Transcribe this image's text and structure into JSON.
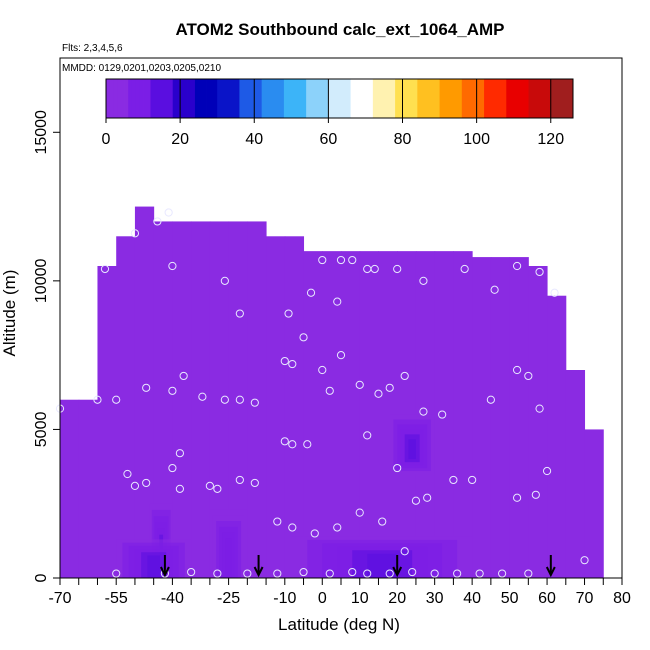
{
  "chart_data": {
    "type": "heatmap",
    "title": "ATOM2 Southbound calc_ext_1064_AMP",
    "subtitle_flights": "Flts: 2,3,4,5,6",
    "subtitle_dates": "MMDD: 0129,0201,0203,0205,0210",
    "xlabel": "Latitude (deg N)",
    "ylabel": "Altitude (m)",
    "xlim": [
      -70,
      80
    ],
    "ylim": [
      0,
      17500
    ],
    "x_tick_labels": [
      "-70",
      "-55",
      "-40",
      "-25",
      "-10",
      "0",
      "10",
      "20",
      "30",
      "40",
      "50",
      "60",
      "70",
      "80"
    ],
    "x_tick_values": [
      -70,
      -55,
      -40,
      -25,
      -10,
      0,
      10,
      20,
      30,
      40,
      50,
      60,
      70,
      80
    ],
    "x_minor_ticks": [
      -65,
      -60,
      -50,
      -45,
      -35,
      -30,
      -20,
      -15,
      -5,
      5,
      15,
      25,
      35,
      45,
      55,
      65,
      75
    ],
    "y_tick_values": [
      0,
      5000,
      10000,
      15000
    ],
    "y_tick_labels": [
      "0",
      "5000",
      "10000",
      "15000"
    ],
    "colorbar": {
      "range": [
        0,
        126
      ],
      "tick_values": [
        0,
        20,
        40,
        60,
        80,
        100,
        120
      ],
      "tick_labels": [
        "0",
        "20",
        "40",
        "60",
        "80",
        "100",
        "120"
      ],
      "colors": [
        "#8a2be2",
        "#7b1ee6",
        "#5a0ee0",
        "#2a00cc",
        "#0000b8",
        "#0a14c8",
        "#1e5ae6",
        "#2a8cf0",
        "#3cb4f8",
        "#8cd2fa",
        "#d2ecfc",
        "#ffffff",
        "#fff2b0",
        "#ffe050",
        "#ffc020",
        "#ff9a00",
        "#ff6a00",
        "#ff2a00",
        "#e80000",
        "#c80a0a",
        "#a01e1e"
      ]
    },
    "field_envelope": {
      "lat_edges": [
        -70,
        -65,
        -60,
        -55,
        -50,
        -45,
        -40,
        -35,
        -30,
        -25,
        -20,
        -15,
        -10,
        -5,
        0,
        5,
        10,
        15,
        20,
        25,
        30,
        35,
        40,
        45,
        50,
        55,
        60,
        65,
        70
      ],
      "top_alt": [
        6000,
        6000,
        10500,
        11500,
        12500,
        12000,
        12000,
        12000,
        12000,
        12000,
        12000,
        11500,
        11500,
        11000,
        11000,
        11000,
        11000,
        11000,
        11000,
        11000,
        11000,
        11000,
        10800,
        10800,
        10800,
        10500,
        9500,
        7000,
        5000
      ]
    },
    "highlights": [
      {
        "lat_range": [
          -46,
          -40
        ],
        "alt_range": [
          0,
          2500
        ],
        "value": 12
      },
      {
        "lat_range": [
          -30,
          -20
        ],
        "alt_range": [
          0,
          2300
        ],
        "value": 10
      },
      {
        "lat_range": [
          -8,
          40
        ],
        "alt_range": [
          0,
          1400
        ],
        "value": 14
      },
      {
        "lat_range": [
          18,
          30
        ],
        "alt_range": [
          3500,
          5500
        ],
        "value": 16
      },
      {
        "lat_range": [
          -55,
          -35
        ],
        "alt_range": [
          0,
          1300
        ],
        "value": 14
      }
    ],
    "sample_points": [
      [
        -55,
        150
      ],
      [
        -42,
        150
      ],
      [
        -35,
        200
      ],
      [
        -28,
        150
      ],
      [
        -20,
        150
      ],
      [
        -12,
        150
      ],
      [
        -5,
        200
      ],
      [
        2,
        150
      ],
      [
        8,
        200
      ],
      [
        12,
        150
      ],
      [
        18,
        150
      ],
      [
        24,
        200
      ],
      [
        30,
        150
      ],
      [
        36,
        150
      ],
      [
        42,
        150
      ],
      [
        48,
        150
      ],
      [
        55,
        150
      ],
      [
        -50,
        3100
      ],
      [
        -47,
        3200
      ],
      [
        -38,
        3000
      ],
      [
        -30,
        3100
      ],
      [
        -28,
        3000
      ],
      [
        -22,
        3300
      ],
      [
        -18,
        3200
      ],
      [
        -40,
        3700
      ],
      [
        -38,
        4200
      ],
      [
        -10,
        4600
      ],
      [
        -8,
        4500
      ],
      [
        -4,
        4500
      ],
      [
        12,
        4800
      ],
      [
        20,
        3700
      ],
      [
        25,
        2600
      ],
      [
        28,
        2700
      ],
      [
        35,
        3300
      ],
      [
        40,
        3300
      ],
      [
        52,
        2700
      ],
      [
        57,
        2800
      ],
      [
        60,
        3600
      ],
      [
        -47,
        6400
      ],
      [
        -40,
        6300
      ],
      [
        -37,
        6800
      ],
      [
        -32,
        6100
      ],
      [
        -26,
        6000
      ],
      [
        -22,
        6000
      ],
      [
        -18,
        5900
      ],
      [
        -10,
        7300
      ],
      [
        -8,
        7200
      ],
      [
        0,
        7000
      ],
      [
        5,
        7500
      ],
      [
        2,
        6300
      ],
      [
        10,
        6500
      ],
      [
        15,
        6200
      ],
      [
        18,
        6400
      ],
      [
        22,
        6800
      ],
      [
        27,
        5600
      ],
      [
        32,
        5500
      ],
      [
        45,
        6000
      ],
      [
        52,
        7000
      ],
      [
        55,
        6800
      ],
      [
        58,
        5700
      ],
      [
        -58,
        10400
      ],
      [
        -50,
        11600
      ],
      [
        -44,
        12000
      ],
      [
        -41,
        12300
      ],
      [
        -40,
        10500
      ],
      [
        -26,
        10000
      ],
      [
        -22,
        8900
      ],
      [
        -5,
        8100
      ],
      [
        0,
        10700
      ],
      [
        5,
        10700
      ],
      [
        8,
        10700
      ],
      [
        12,
        10400
      ],
      [
        14,
        10400
      ],
      [
        20,
        10400
      ],
      [
        27,
        10000
      ],
      [
        38,
        10400
      ],
      [
        46,
        9700
      ],
      [
        52,
        10500
      ],
      [
        58,
        10300
      ],
      [
        62,
        9600
      ],
      [
        -9,
        8900
      ],
      [
        -3,
        9600
      ],
      [
        4,
        9300
      ],
      [
        -12,
        1900
      ],
      [
        -8,
        1700
      ],
      [
        -2,
        1500
      ],
      [
        4,
        1700
      ],
      [
        10,
        2200
      ],
      [
        16,
        1900
      ],
      [
        22,
        900
      ],
      [
        -60,
        6000
      ],
      [
        -70,
        5700
      ],
      [
        70,
        600
      ],
      [
        -55,
        6000
      ],
      [
        -52,
        3500
      ]
    ]
  }
}
